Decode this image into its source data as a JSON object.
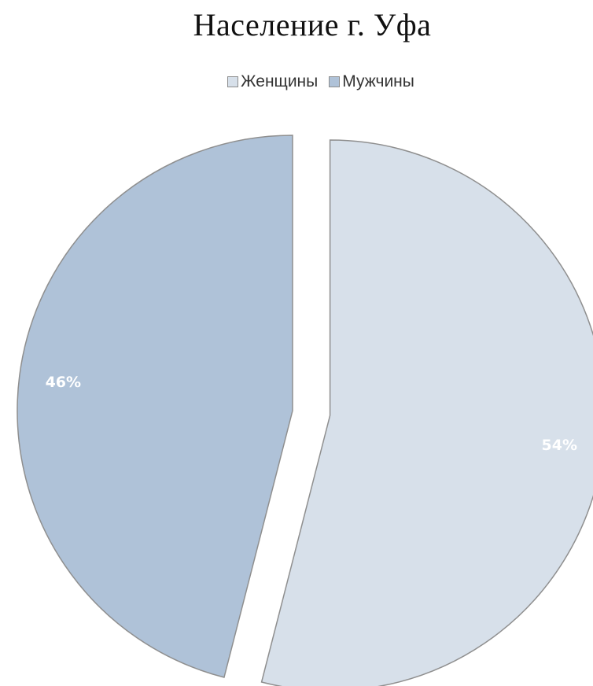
{
  "chart_data": {
    "type": "pie",
    "title": "Население г. Уфа",
    "legend_position": "top",
    "slices": [
      {
        "name": "Женщины",
        "value": 54,
        "label": "54%",
        "color": "#d7e0ea",
        "exploded": true
      },
      {
        "name": "Мужчины",
        "value": 46,
        "label": "46%",
        "color": "#afc2d8",
        "exploded": false
      }
    ],
    "slice_border_color": "#8f8f8f"
  }
}
